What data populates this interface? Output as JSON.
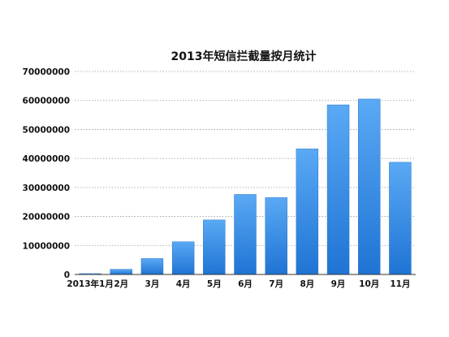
{
  "chart_data": {
    "type": "bar",
    "title": "2013年短信拦截量按月统计",
    "categories": [
      "2013年1月",
      "2月",
      "3月",
      "4月",
      "5月",
      "6月",
      "7月",
      "8月",
      "9月",
      "10月",
      "11月"
    ],
    "values": [
      300000,
      1800000,
      5500000,
      11300000,
      18800000,
      27600000,
      26500000,
      43300000,
      58500000,
      60500000,
      38700000
    ],
    "ylim": [
      0,
      70000000
    ],
    "yticks": [
      0,
      10000000,
      20000000,
      30000000,
      40000000,
      50000000,
      60000000,
      70000000
    ],
    "ytick_labels": [
      "0",
      "10000000",
      "20000000",
      "30000000",
      "40000000",
      "50000000",
      "60000000",
      "70000000"
    ],
    "xlabel": "",
    "ylabel": "",
    "grid": "horizontal dotted",
    "legend": "none",
    "colors": {
      "bar_top": "#5aa9f5",
      "bar_bottom": "#1f74d4",
      "bar_edge": "#1a66c0",
      "grid": "#9a9a9a",
      "axis": "#333333",
      "text": "#111111"
    }
  }
}
